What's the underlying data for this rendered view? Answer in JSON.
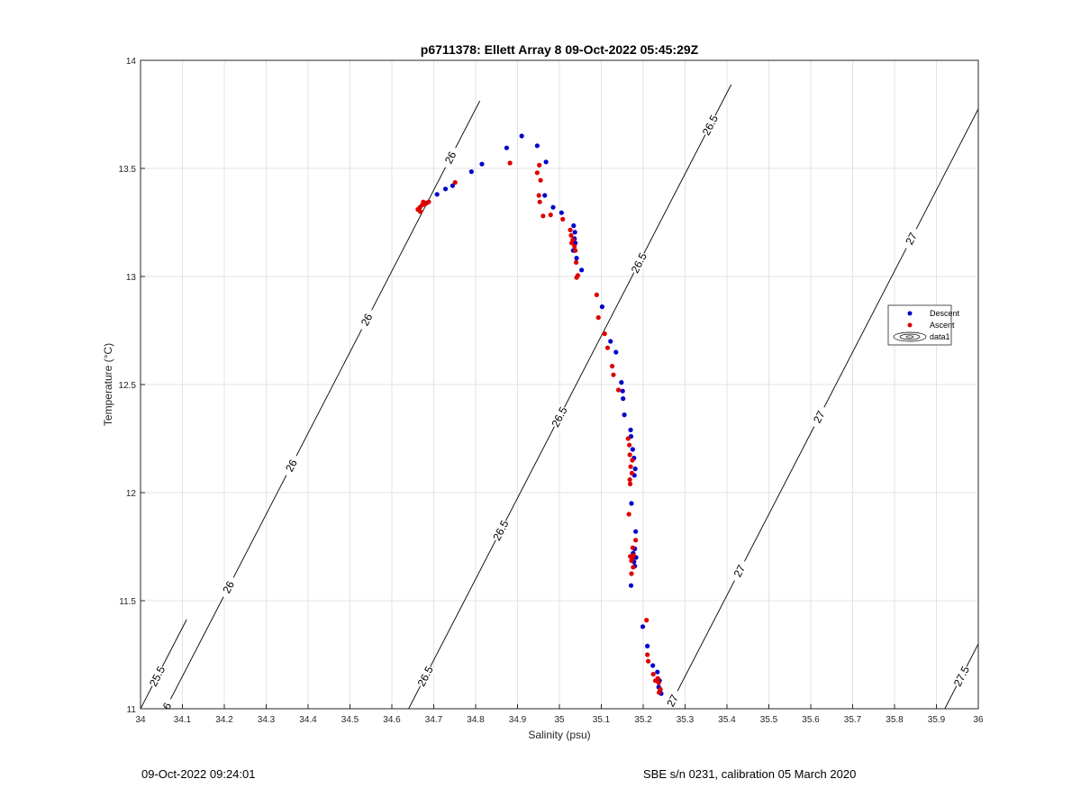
{
  "chart_data": {
    "type": "scatter",
    "title": "p6711378: Ellett Array 8 09-Oct-2022 05:45:29Z",
    "xlabel": "Salinity (psu)",
    "ylabel": "Temperature (°C)",
    "xlim": [
      34,
      36
    ],
    "ylim": [
      11,
      14
    ],
    "x_ticks": [
      "34",
      "34.1",
      "34.2",
      "34.3",
      "34.4",
      "34.5",
      "34.6",
      "34.7",
      "34.8",
      "34.9",
      "35",
      "35.1",
      "35.2",
      "35.3",
      "35.4",
      "35.5",
      "35.6",
      "35.7",
      "35.8",
      "35.9",
      "36"
    ],
    "y_ticks": [
      "11",
      "11.5",
      "12",
      "12.5",
      "13",
      "13.5",
      "14"
    ],
    "grid": true,
    "legend_placement": "right",
    "legend": [
      "Descent",
      "Ascent",
      "data1"
    ],
    "series": [
      {
        "name": "Descent",
        "color": "#0000cc",
        "marker": "dot",
        "points": [
          [
            34.91,
            13.65
          ],
          [
            34.947,
            13.605
          ],
          [
            34.968,
            13.53
          ],
          [
            34.874,
            13.595
          ],
          [
            34.815,
            13.52
          ],
          [
            34.79,
            13.485
          ],
          [
            34.745,
            13.42
          ],
          [
            34.728,
            13.405
          ],
          [
            34.708,
            13.38
          ],
          [
            34.965,
            13.375
          ],
          [
            34.985,
            13.32
          ],
          [
            35.005,
            13.295
          ],
          [
            35.034,
            13.235
          ],
          [
            35.037,
            13.205
          ],
          [
            35.036,
            13.175
          ],
          [
            35.038,
            13.155
          ],
          [
            35.033,
            13.12
          ],
          [
            35.041,
            13.085
          ],
          [
            35.053,
            13.03
          ],
          [
            35.102,
            12.86
          ],
          [
            35.122,
            12.7
          ],
          [
            35.135,
            12.65
          ],
          [
            35.148,
            12.51
          ],
          [
            35.151,
            12.47
          ],
          [
            35.152,
            12.435
          ],
          [
            35.155,
            12.36
          ],
          [
            35.17,
            12.29
          ],
          [
            35.171,
            12.26
          ],
          [
            35.175,
            12.2
          ],
          [
            35.178,
            12.16
          ],
          [
            35.181,
            12.11
          ],
          [
            35.179,
            12.08
          ],
          [
            35.172,
            11.95
          ],
          [
            35.182,
            11.82
          ],
          [
            35.18,
            11.74
          ],
          [
            35.176,
            11.72
          ],
          [
            35.183,
            11.7
          ],
          [
            35.178,
            11.68
          ],
          [
            35.18,
            11.66
          ],
          [
            35.171,
            11.57
          ],
          [
            35.199,
            11.38
          ],
          [
            35.21,
            11.29
          ],
          [
            35.223,
            11.2
          ],
          [
            35.234,
            11.17
          ],
          [
            35.239,
            11.13
          ],
          [
            35.237,
            11.1
          ],
          [
            35.24,
            11.08
          ],
          [
            35.243,
            11.07
          ]
        ]
      },
      {
        "name": "Ascent",
        "color": "#dd0000",
        "marker": "dot",
        "points": [
          [
            34.662,
            13.31
          ],
          [
            34.667,
            13.32
          ],
          [
            34.672,
            13.33
          ],
          [
            34.675,
            13.345
          ],
          [
            34.679,
            13.335
          ],
          [
            34.683,
            13.34
          ],
          [
            34.688,
            13.345
          ],
          [
            34.668,
            13.3
          ],
          [
            34.751,
            13.435
          ],
          [
            34.882,
            13.525
          ],
          [
            34.952,
            13.515
          ],
          [
            34.947,
            13.48
          ],
          [
            34.955,
            13.445
          ],
          [
            34.951,
            13.375
          ],
          [
            34.953,
            13.345
          ],
          [
            34.961,
            13.28
          ],
          [
            34.979,
            13.285
          ],
          [
            35.008,
            13.265
          ],
          [
            35.026,
            13.215
          ],
          [
            35.028,
            13.19
          ],
          [
            35.032,
            13.17
          ],
          [
            35.029,
            13.155
          ],
          [
            35.036,
            13.14
          ],
          [
            35.038,
            13.12
          ],
          [
            35.04,
            13.065
          ],
          [
            35.044,
            13.005
          ],
          [
            35.041,
            12.995
          ],
          [
            35.089,
            12.915
          ],
          [
            35.093,
            12.81
          ],
          [
            35.108,
            12.735
          ],
          [
            35.115,
            12.67
          ],
          [
            35.126,
            12.585
          ],
          [
            35.129,
            12.545
          ],
          [
            35.141,
            12.475
          ],
          [
            35.164,
            12.25
          ],
          [
            35.167,
            12.22
          ],
          [
            35.168,
            12.175
          ],
          [
            35.174,
            12.15
          ],
          [
            35.17,
            12.12
          ],
          [
            35.173,
            12.09
          ],
          [
            35.168,
            12.06
          ],
          [
            35.169,
            12.04
          ],
          [
            35.166,
            11.9
          ],
          [
            35.182,
            11.78
          ],
          [
            35.175,
            11.745
          ],
          [
            35.177,
            11.71
          ],
          [
            35.169,
            11.705
          ],
          [
            35.174,
            11.695
          ],
          [
            35.172,
            11.685
          ],
          [
            35.176,
            11.655
          ],
          [
            35.172,
            11.625
          ],
          [
            35.208,
            11.41
          ],
          [
            35.21,
            11.25
          ],
          [
            35.212,
            11.22
          ],
          [
            35.224,
            11.16
          ],
          [
            35.229,
            11.13
          ],
          [
            35.235,
            11.14
          ],
          [
            35.237,
            11.12
          ],
          [
            35.241,
            11.09
          ],
          [
            35.238,
            11.075
          ]
        ]
      }
    ],
    "contours": [
      {
        "level": "25.5",
        "lines": [
          {
            "x0": 34.0,
            "x1": 34.11
          }
        ],
        "labels": [
          {
            "x": 34.04,
            "text": "25.5"
          }
        ]
      },
      {
        "level": "26",
        "lines": [
          {
            "x0": 34.06,
            "x1": 34.81
          }
        ],
        "labels": [
          {
            "x": 34.06,
            "text": "26"
          },
          {
            "x": 34.21,
            "text": "26"
          },
          {
            "x": 34.36,
            "text": "26"
          },
          {
            "x": 34.54,
            "text": "26"
          },
          {
            "x": 34.74,
            "text": "26"
          }
        ]
      },
      {
        "level": "26.5",
        "lines": [
          {
            "x0": 34.64,
            "x1": 35.41
          }
        ],
        "labels": [
          {
            "x": 34.68,
            "text": "26.5"
          },
          {
            "x": 34.86,
            "text": "26.5"
          },
          {
            "x": 35.0,
            "text": "26.5"
          },
          {
            "x": 35.19,
            "text": "26.5"
          },
          {
            "x": 35.36,
            "text": "26.5"
          }
        ]
      },
      {
        "level": "27",
        "lines": [
          {
            "x0": 35.26,
            "x1": 36.0
          }
        ],
        "labels": [
          {
            "x": 35.27,
            "text": "27"
          },
          {
            "x": 35.43,
            "text": "27"
          },
          {
            "x": 35.62,
            "text": "27"
          },
          {
            "x": 35.84,
            "text": "27"
          }
        ]
      },
      {
        "level": "27.5",
        "lines": [
          {
            "x0": 35.92,
            "x1": 36.0
          }
        ],
        "labels": [
          {
            "x": 35.96,
            "text": "27.5"
          }
        ]
      }
    ]
  },
  "footer": {
    "timestamp": "09-Oct-2022 09:24:01",
    "instrument": "SBE s/n 0231, calibration 05 March 2020"
  }
}
